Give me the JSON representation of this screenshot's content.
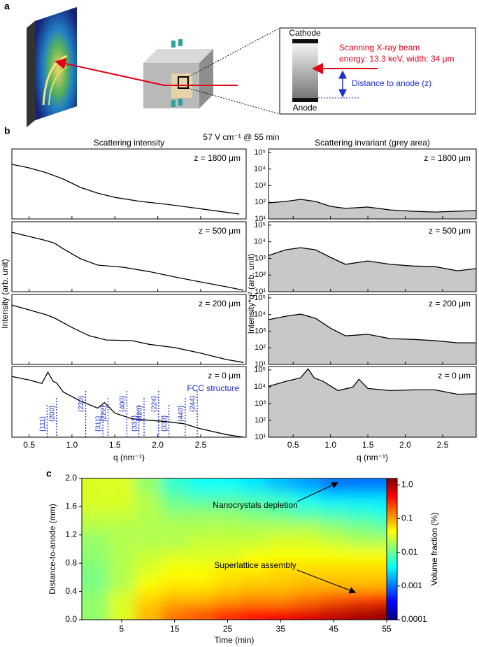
{
  "panel_labels": [
    "a",
    "b",
    "c"
  ],
  "diagram": {
    "cathode": "Cathode",
    "anode": "Anode",
    "beam": "Scanning X-ray beam",
    "beam_spec": "energy: 13.3 keV, width: 34 μm",
    "distance": "Distance to anode (z)"
  },
  "header": "57 V cm⁻¹ @ 55 min",
  "chart_data": [
    {
      "type": "line",
      "title": "Scattering intensity",
      "xlabel": "q (nm⁻¹)",
      "ylabel": "Intensity (arb. unit)",
      "log_y": true,
      "xlim": [
        0.3,
        3.03
      ],
      "ylim": [
        0.1,
        1000
      ],
      "xticks": [
        0.5,
        {
          "value": 1,
          "label": "1.0"
        },
        1.5,
        {
          "value": 2,
          "label": "2.0"
        },
        2.5
      ],
      "series": [
        {
          "name": "z = 1800 μm",
          "color": "#000000",
          "x": [
            0.3,
            0.5,
            0.7,
            0.9,
            1.1,
            1.3,
            1.5,
            1.8,
            2.1,
            2.4,
            2.7,
            2.95
          ],
          "values": [
            132,
            83,
            44,
            19,
            6.3,
            3.0,
            1.7,
            1.0,
            0.69,
            0.44,
            0.28,
            0.19
          ]
        },
        {
          "name": "z = 500 μm",
          "color": "#000000",
          "x": [
            0.3,
            0.5,
            0.7,
            0.8,
            0.9,
            1.1,
            1.3,
            1.6,
            1.9,
            2.2,
            2.5,
            2.8,
            3.0
          ],
          "values": [
            250,
            145,
            83,
            58,
            28,
            7.6,
            3.3,
            2.5,
            1.4,
            0.69,
            0.36,
            0.19,
            0.12
          ]
        },
        {
          "name": "z = 200 μm",
          "color": "#000000",
          "x": [
            0.3,
            0.5,
            0.7,
            0.8,
            1.0,
            1.2,
            1.4,
            1.7,
            1.9,
            2.2,
            2.5,
            2.8,
            3.0
          ],
          "values": [
            250,
            132,
            69,
            44,
            13,
            4.4,
            2.5,
            2.3,
            1.4,
            0.91,
            0.44,
            0.19,
            0.13
          ]
        },
        {
          "name": "z = 0 μm",
          "color": "#000000",
          "x": [
            0.3,
            0.5,
            0.65,
            0.72,
            0.78,
            0.82,
            0.9,
            1.1,
            1.3,
            1.38,
            1.5,
            1.7,
            1.9,
            2.1,
            2.3,
            2.5,
            2.8,
            3.0
          ],
          "values": [
            275,
            174,
            110,
            479,
            145,
            120,
            36,
            11,
            4.4,
            9.1,
            2.3,
            1.1,
            0.91,
            0.76,
            0.58,
            0.3,
            0.14,
            0.1
          ]
        }
      ],
      "reflection_note": "FCC structure",
      "reflection_color": "#1f2fd0",
      "reflections": [
        {
          "label": "{111}",
          "q": 0.71
        },
        {
          "label": "{200}",
          "q": 0.82
        },
        {
          "label": "{220}",
          "q": 1.16
        },
        {
          "label": "{311}",
          "q": 1.36
        },
        {
          "label": "{222}",
          "q": 1.42
        },
        {
          "label": "{400}",
          "q": 1.64
        },
        {
          "label": "{331}",
          "q": 1.78
        },
        {
          "label": "{420}",
          "q": 1.84
        },
        {
          "label": "{224}",
          "q": 2.01
        },
        {
          "label": "{333}",
          "q": 2.13
        },
        {
          "label": "{440}",
          "q": 2.32
        },
        {
          "label": "{244}",
          "q": 2.46
        }
      ]
    },
    {
      "type": "area",
      "title": "Scattering invariant (grey area)",
      "xlabel": "q (nm⁻¹)",
      "ylabel": "Intensity*q² (arb. unit)",
      "log_y": true,
      "xlim": [
        0.17,
        2.95
      ],
      "ylim": [
        10,
        160000
      ],
      "fill": "#c8c8c8",
      "xticks": [
        0.5,
        {
          "value": 1,
          "label": "1.0"
        },
        1.5,
        {
          "value": 2,
          "label": "2.0"
        },
        2.5
      ],
      "yticks": [
        {
          "value": 10,
          "label": "10¹"
        },
        {
          "value": 100,
          "label": "10²"
        },
        {
          "value": 1000,
          "label": "10³"
        },
        {
          "value": 10000,
          "label": "10⁴"
        },
        {
          "value": 100000,
          "label": "10⁵"
        }
      ],
      "series": [
        {
          "name": "z = 1800 μm",
          "color": "#000000",
          "x": [
            0.17,
            0.4,
            0.6,
            0.8,
            1.0,
            1.2,
            1.5,
            1.8,
            2.1,
            2.4,
            2.7,
            2.95
          ],
          "values": [
            93,
            112,
            150,
            112,
            57,
            43,
            52,
            35,
            29,
            26,
            29,
            32
          ]
        },
        {
          "name": "z = 500 μm",
          "color": "#000000",
          "x": [
            0.17,
            0.4,
            0.6,
            0.8,
            1.0,
            1.2,
            1.5,
            1.8,
            2.1,
            2.4,
            2.7,
            2.95
          ],
          "values": [
            1500,
            3300,
            4400,
            3300,
            1150,
            440,
            700,
            440,
            350,
            320,
            180,
            245
          ]
        },
        {
          "name": "z = 200 μm",
          "color": "#000000",
          "x": [
            0.17,
            0.4,
            0.6,
            0.8,
            1.0,
            1.2,
            1.5,
            1.8,
            2.1,
            2.4,
            2.7,
            2.95
          ],
          "values": [
            4900,
            7900,
            10500,
            5900,
            1500,
            525,
            645,
            355,
            320,
            270,
            200,
            200
          ]
        },
        {
          "name": "z = 0 μm",
          "color": "#000000",
          "x": [
            0.17,
            0.4,
            0.6,
            0.7,
            0.78,
            0.9,
            1.1,
            1.3,
            1.38,
            1.5,
            1.8,
            2.1,
            2.4,
            2.7,
            2.95
          ],
          "values": [
            10500,
            21000,
            34000,
            117000,
            34000,
            21000,
            5900,
            9600,
            28000,
            7900,
            5900,
            6500,
            6500,
            3600,
            3800
          ]
        }
      ]
    },
    {
      "type": "heatmap",
      "xlabel": "Time (min)",
      "ylabel": "Distance-to-anode (mm)",
      "xlim": [
        -2.5,
        55
      ],
      "ylim": [
        0,
        2
      ],
      "xticks": [
        5,
        15,
        25,
        35,
        45,
        55
      ],
      "yticks": [
        {
          "value": 0,
          "label": "0.0"
        },
        0.4,
        0.8,
        1.2,
        1.6,
        {
          "value": 2,
          "label": "2.0"
        }
      ],
      "x": [
        0,
        5,
        10,
        15,
        20,
        25,
        30,
        35,
        40,
        45,
        50,
        55
      ],
      "y": [
        0.1,
        0.3,
        0.5,
        0.7,
        0.9,
        1.1,
        1.3,
        1.5,
        1.7,
        1.9
      ],
      "z": [
        [
          0.015,
          0.03,
          0.08,
          0.15,
          0.2,
          0.3,
          0.4,
          0.5,
          0.6,
          0.8,
          1.0,
          1.2
        ],
        [
          0.015,
          0.03,
          0.06,
          0.08,
          0.08,
          0.1,
          0.12,
          0.12,
          0.15,
          0.2,
          0.25,
          0.3
        ],
        [
          0.012,
          0.02,
          0.04,
          0.05,
          0.05,
          0.06,
          0.07,
          0.07,
          0.08,
          0.08,
          0.08,
          0.08
        ],
        [
          0.012,
          0.02,
          0.03,
          0.04,
          0.04,
          0.05,
          0.05,
          0.06,
          0.06,
          0.06,
          0.06,
          0.06
        ],
        [
          0.015,
          0.02,
          0.025,
          0.03,
          0.03,
          0.03,
          0.04,
          0.04,
          0.04,
          0.04,
          0.04,
          0.04
        ],
        [
          0.015,
          0.02,
          0.02,
          0.02,
          0.025,
          0.025,
          0.025,
          0.03,
          0.03,
          0.025,
          0.02,
          0.02
        ],
        [
          0.02,
          0.02,
          0.02,
          0.02,
          0.02,
          0.02,
          0.02,
          0.02,
          0.02,
          0.015,
          0.012,
          0.01
        ],
        [
          0.025,
          0.025,
          0.02,
          0.015,
          0.015,
          0.015,
          0.012,
          0.01,
          0.008,
          0.007,
          0.006,
          0.005
        ],
        [
          0.03,
          0.03,
          0.02,
          0.01,
          0.008,
          0.008,
          0.007,
          0.006,
          0.004,
          0.003,
          0.003,
          0.003
        ],
        [
          0.03,
          0.03,
          0.015,
          0.006,
          0.004,
          0.004,
          0.003,
          0.002,
          0.0015,
          0.001,
          0.001,
          0.001
        ]
      ],
      "colorbar": {
        "label": "Volume fraction (%)",
        "lim": [
          0.0001,
          1.55
        ],
        "log": true,
        "colormap": "jet",
        "ticks": [
          0.0001,
          0.001,
          0.01,
          0.1,
          {
            "value": 1,
            "label": "1.0"
          }
        ]
      },
      "annotations": [
        {
          "text": "Nanocrystals depletion"
        },
        {
          "text": "Superlattice assembly"
        }
      ]
    }
  ]
}
